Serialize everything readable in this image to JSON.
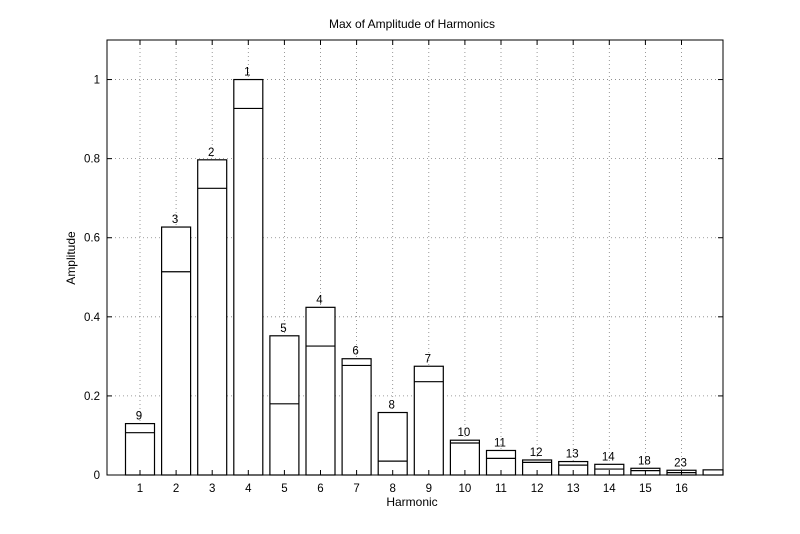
{
  "chart_data": {
    "type": "bar",
    "title": "Max of Amplitude of Harmonics",
    "xlabel": "Harmonic",
    "ylabel": "Amplitude",
    "ylim": [
      0,
      1.1
    ],
    "yticks": [
      "0",
      "0.2",
      "0.4",
      "0.6",
      "0.8",
      "1"
    ],
    "ytick_values": [
      0,
      0.2,
      0.4,
      0.6,
      0.8,
      1.0
    ],
    "categories": [
      "1",
      "2",
      "3",
      "4",
      "5",
      "6",
      "7",
      "8",
      "9",
      "10",
      "11",
      "12",
      "13",
      "14",
      "15",
      "16",
      ""
    ],
    "values": [
      0.13,
      0.627,
      0.797,
      1.0,
      0.352,
      0.424,
      0.294,
      0.158,
      0.275,
      0.088,
      0.062,
      0.038,
      0.034,
      0.027,
      0.017,
      0.012,
      0.013
    ],
    "inner_values": [
      0.107,
      0.514,
      0.725,
      0.927,
      0.18,
      0.326,
      0.277,
      0.035,
      0.236,
      0.081,
      0.042,
      0.032,
      0.025,
      0.015,
      0.011,
      0.006,
      0.0
    ],
    "bar_labels": [
      "9",
      "3",
      "2",
      "1",
      "5",
      "4",
      "6",
      "8",
      "7",
      "10",
      "11",
      "12",
      "13",
      "14",
      "18",
      "23",
      ""
    ],
    "grid": true
  }
}
